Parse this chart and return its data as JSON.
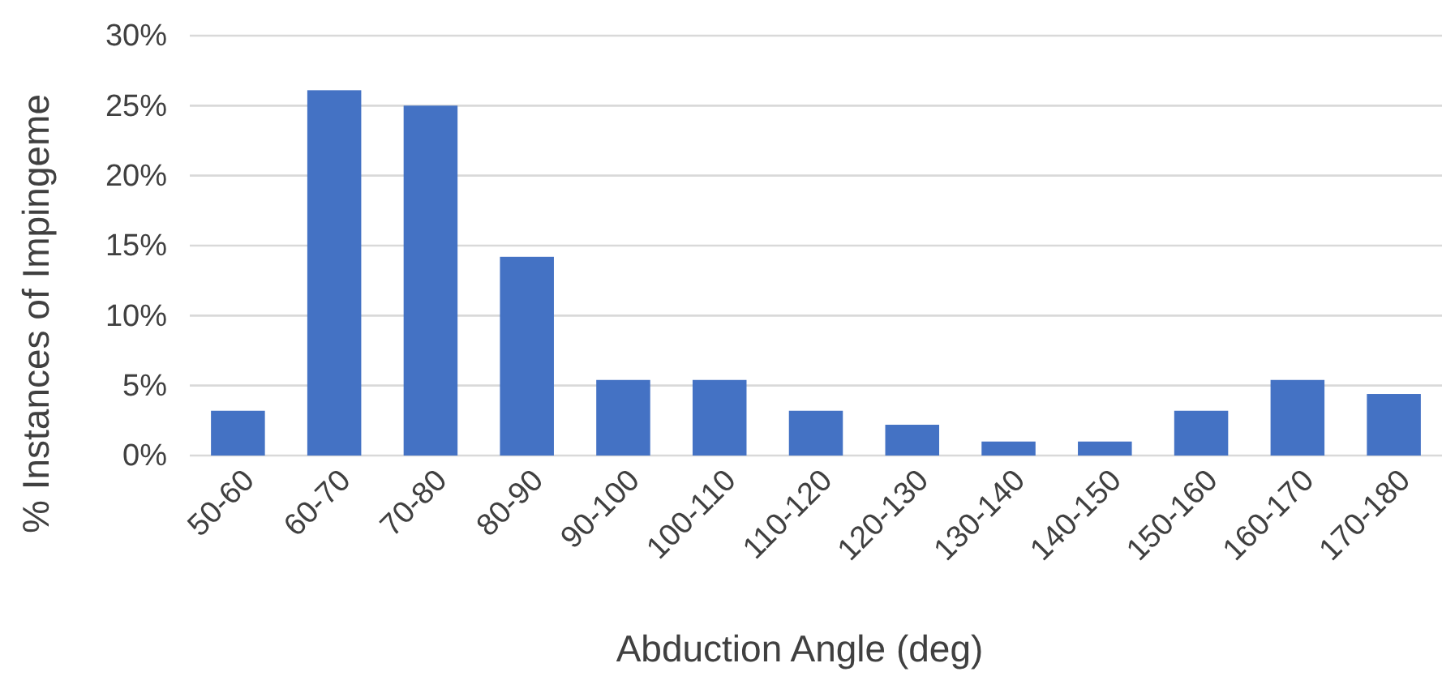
{
  "chart_data": {
    "type": "bar",
    "xlabel": "Abduction Angle (deg)",
    "ylabel": "% Instances of Impingeme",
    "categories": [
      "50-60",
      "60-70",
      "70-80",
      "80-90",
      "90-100",
      "100-110",
      "110-120",
      "120-130",
      "130-140",
      "140-150",
      "150-160",
      "160-170",
      "170-180"
    ],
    "values": [
      3.2,
      26.1,
      25.0,
      14.2,
      5.4,
      5.4,
      3.2,
      2.2,
      1.0,
      1.0,
      3.2,
      5.4,
      4.4
    ],
    "color": "#4472c4",
    "ylim": [
      0,
      30
    ],
    "yticks": [
      {
        "value": 0,
        "label": "0%"
      },
      {
        "value": 5,
        "label": "5%"
      },
      {
        "value": 10,
        "label": "10%"
      },
      {
        "value": 15,
        "label": "15%"
      },
      {
        "value": 20,
        "label": "20%"
      },
      {
        "value": 25,
        "label": "25%"
      },
      {
        "value": 30,
        "label": "30%"
      }
    ],
    "grid": "y"
  }
}
